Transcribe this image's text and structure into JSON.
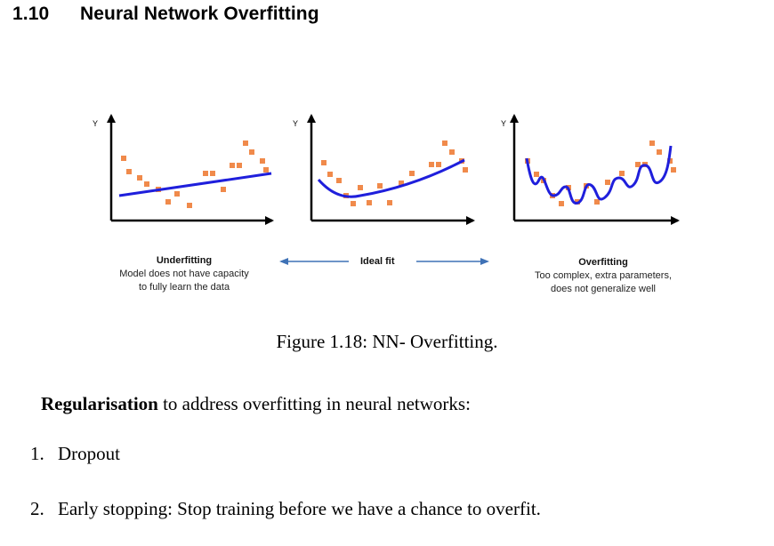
{
  "section": {
    "number": "1.10",
    "title": "Neural Network Overfitting"
  },
  "figure": {
    "panels": [
      {
        "axis_label": "Y",
        "title": "Underfitting",
        "lines": [
          "Model does not have capacity",
          "to fully learn the data"
        ]
      },
      {
        "axis_label": "Y",
        "title": "Ideal fit",
        "lines": []
      },
      {
        "axis_label": "Y",
        "title": "Overfitting",
        "lines": [
          "Too complex, extra parameters,",
          "does not generalize well"
        ]
      }
    ],
    "caption": "Figure 1.18: NN- Overfitting.",
    "colors": {
      "points": "#f08a4b",
      "fit_line": "#1f1fdc",
      "arrow": "#3f72b6",
      "axis": "#000000"
    }
  },
  "body": {
    "regularisation_bold": "Regularisation",
    "regularisation_rest": " to address overfitting in neural networks:",
    "list": [
      {
        "number": "1.",
        "text": "Dropout"
      },
      {
        "number": "2.",
        "text": "Early stopping: Stop training before we have a chance to overfit."
      }
    ]
  }
}
